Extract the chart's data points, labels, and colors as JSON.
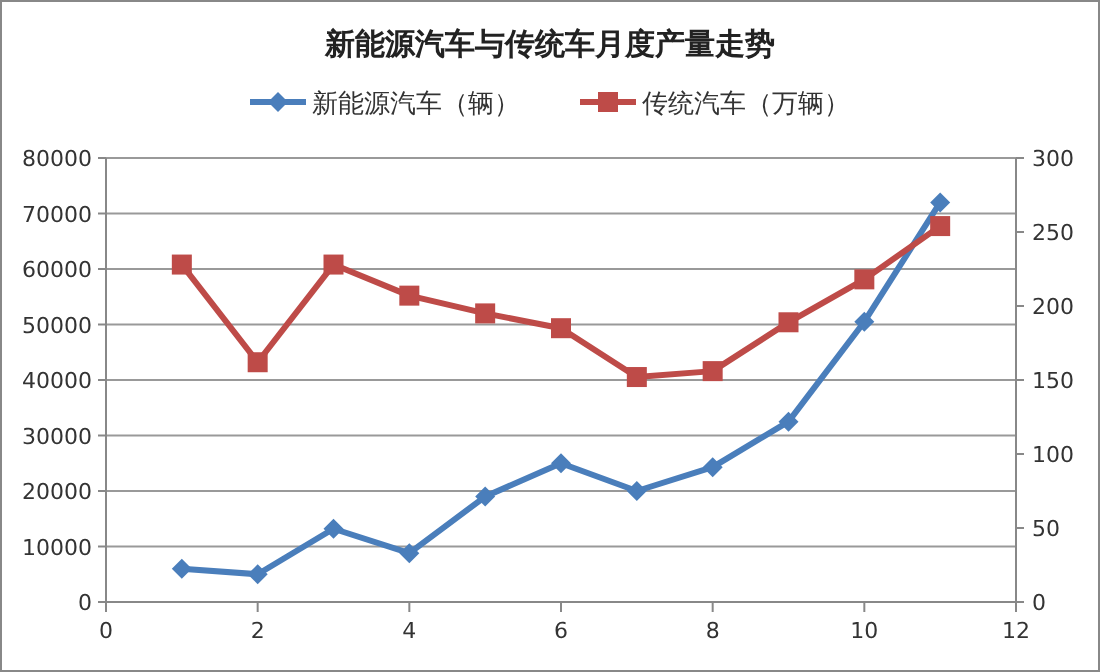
{
  "chart_data": {
    "type": "line",
    "title": "新能源汽车与传统车月度产量走势",
    "x": [
      1,
      2,
      3,
      4,
      5,
      6,
      7,
      8,
      9,
      10,
      11
    ],
    "series": [
      {
        "name": "新能源汽车（辆）",
        "color": "#4a7ebb",
        "marker": "diamond",
        "values": [
          6000,
          5000,
          13200,
          8800,
          19000,
          25000,
          20000,
          24300,
          32500,
          50500,
          72000
        ]
      },
      {
        "name": "传统汽车（万辆）",
        "color": "#be4b48",
        "marker": "square",
        "axis": "y2",
        "values": [
          228,
          162,
          228,
          207,
          195,
          185,
          152,
          156,
          189,
          218,
          254
        ]
      }
    ],
    "xlim": [
      0,
      12
    ],
    "xticks": [
      0,
      2,
      4,
      6,
      8,
      10,
      12
    ],
    "ylim": [
      0,
      80000
    ],
    "yticks": [
      0,
      10000,
      20000,
      30000,
      40000,
      50000,
      60000,
      70000,
      80000
    ],
    "y2lim": [
      0,
      300
    ],
    "y2ticks": [
      0,
      50,
      100,
      150,
      200,
      250,
      300
    ],
    "grid": "y",
    "legend": "top"
  }
}
